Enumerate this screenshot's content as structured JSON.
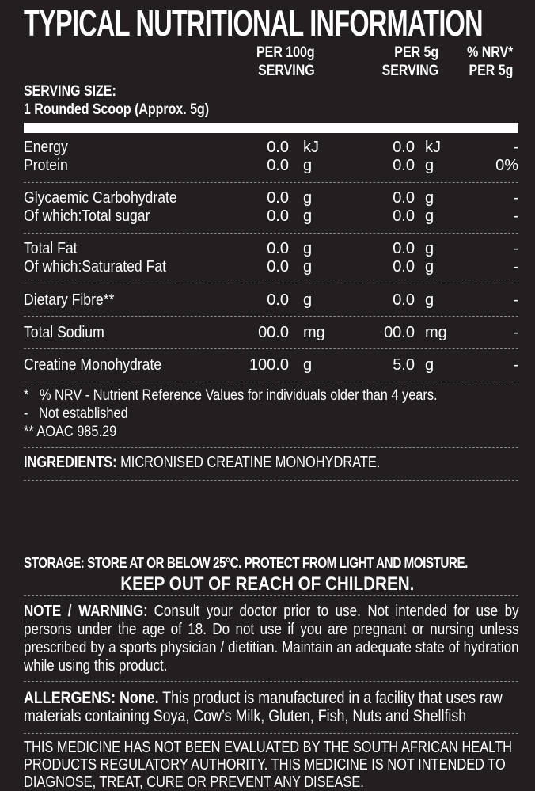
{
  "title": "TYPICAL NUTRITIONAL INFORMATION",
  "columns": [
    {
      "line1": "PER 100g",
      "line2": "SERVING"
    },
    {
      "line1": "PER 5g",
      "line2": "SERVING"
    },
    {
      "line1": "% NRV*",
      "line2": "PER 5g"
    }
  ],
  "serving": {
    "label": "SERVING SIZE:",
    "value": "1 Rounded Scoop (Approx. 5g)"
  },
  "rows": [
    {
      "name": "Energy",
      "v100": "0.0",
      "u100": "kJ",
      "v5": "0.0",
      "u5": "kJ",
      "nrv": "-"
    },
    {
      "name": "Protein",
      "v100": "0.0",
      "u100": "g",
      "v5": "0.0",
      "u5": "g",
      "nrv": "0%"
    },
    {
      "name": "Glycaemic Carbohydrate",
      "v100": "0.0",
      "u100": "g",
      "v5": "0.0",
      "u5": "g",
      "nrv": "-"
    },
    {
      "name": "Of which:Total sugar",
      "v100": "0.0",
      "u100": "g",
      "v5": "0.0",
      "u5": "g",
      "nrv": "-"
    },
    {
      "name": "Total Fat",
      "v100": "0.0",
      "u100": "g",
      "v5": "0.0",
      "u5": "g",
      "nrv": "-"
    },
    {
      "name": "Of which:Saturated Fat",
      "v100": "0.0",
      "u100": "g",
      "v5": "0.0",
      "u5": "g",
      "nrv": "-"
    },
    {
      "name": "Dietary Fibre**",
      "v100": "0.0",
      "u100": "g",
      "v5": "0.0",
      "u5": "g",
      "nrv": "-"
    },
    {
      "name": "Total Sodium",
      "v100": "00.0",
      "u100": "mg",
      "v5": "00.0",
      "u5": "mg",
      "nrv": "-"
    },
    {
      "name": "Creatine Monohydrate",
      "v100": "100.0",
      "u100": "g",
      "v5": "5.0",
      "u5": "g",
      "nrv": "-"
    }
  ],
  "footnotes": [
    "*   % NRV - Nutrient Reference Values for individuals older than 4 years.",
    "-   Not established",
    "** AOAC 985.29"
  ],
  "ingredients": {
    "label": "INGREDIENTS:",
    "text": " MICRONISED CREATINE MONOHYDRATE."
  },
  "storage": "STORAGE: STORE AT OR BELOW 25°C. PROTECT FROM LIGHT AND MOISTURE.",
  "keep_out": "KEEP OUT OF REACH OF CHILDREN.",
  "warning": {
    "label": "NOTE / WARNING",
    "text": ": Consult your doctor prior to use. Not intended for use by persons under the age of 18. Do not use if you are pregnant or nursing unless prescribed by a sports physician / dietitian. Maintain an adequate state of hydration while using this product."
  },
  "allergens": {
    "label": "ALLERGENS: None.",
    "text": " This product is manufactured in a facility that uses raw materials containing Soya, Cow’s Milk, Gluten, Fish, Nuts and Shellfish"
  },
  "disclaimer": "THIS MEDICINE HAS NOT BEEN EVALUATED BY THE SOUTH AFRICAN HEALTH PRODUCTS REGULATORY AUTHORITY. THIS MEDICINE IS NOT INTENDED TO DIAGNOSE, TREAT, CURE OR PREVENT ANY DISEASE."
}
